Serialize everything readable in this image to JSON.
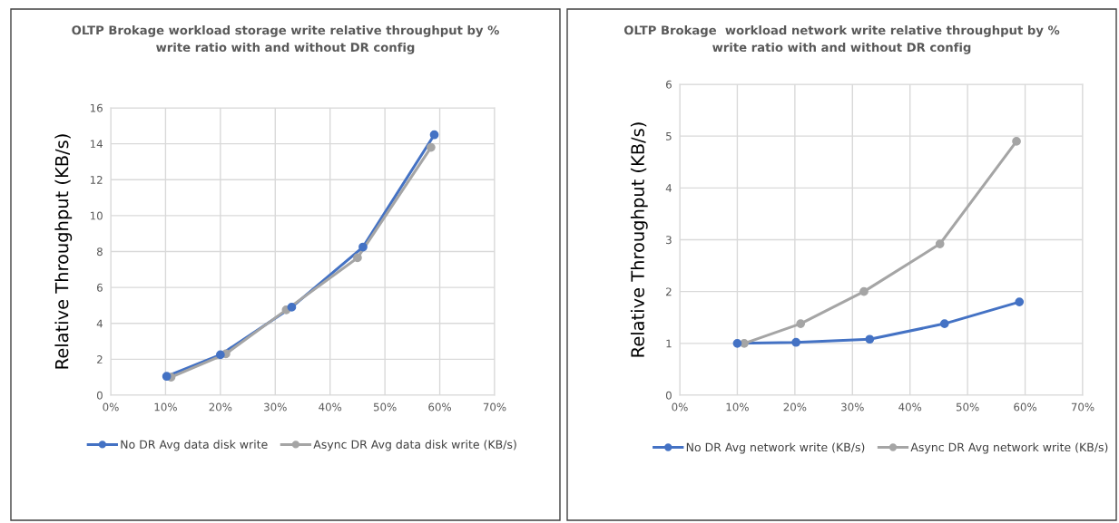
{
  "chart_data": [
    {
      "type": "line",
      "title": "OLTP Brokage workload storage write relative throughput by %\nwrite ratio with and without DR config",
      "ylabel": "Relative Throughput (KB/s)",
      "xlim": [
        0,
        70
      ],
      "xticks": [
        {
          "value": 0,
          "label": "0%"
        },
        {
          "value": 10,
          "label": "10%"
        },
        {
          "value": 20,
          "label": "20%"
        },
        {
          "value": 30,
          "label": "30%"
        },
        {
          "value": 40,
          "label": "40%"
        },
        {
          "value": 50,
          "label": "50%"
        },
        {
          "value": 60,
          "label": "60%"
        },
        {
          "value": 70,
          "label": "70%"
        }
      ],
      "ylim": [
        0,
        16
      ],
      "yticks": [
        0,
        2,
        4,
        6,
        8,
        10,
        12,
        14,
        16
      ],
      "grid": true,
      "legend": "bottom",
      "marker": "circle",
      "line_style": "solid",
      "series": [
        {
          "name": "No DR Avg data disk write",
          "color": "#4472c4",
          "x": [
            10.2,
            20.0,
            33.0,
            46.0,
            59.0
          ],
          "values": [
            1.05,
            2.25,
            4.9,
            8.25,
            14.5
          ]
        },
        {
          "name": "Async DR Avg data disk write (KB/s)",
          "color": "#a5a5a5",
          "x": [
            11.0,
            21.0,
            32.0,
            45.0,
            58.4
          ],
          "values": [
            1.0,
            2.3,
            4.75,
            7.65,
            13.8
          ]
        }
      ]
    },
    {
      "type": "line",
      "title": "OLTP Brokage  workload network write relative throughput by %\nwrite ratio with and without DR config",
      "ylabel": "Relative Throughput (KB/s)",
      "xlim": [
        0,
        70
      ],
      "xticks": [
        {
          "value": 0,
          "label": "0%"
        },
        {
          "value": 10,
          "label": "10%"
        },
        {
          "value": 20,
          "label": "20%"
        },
        {
          "value": 30,
          "label": "30%"
        },
        {
          "value": 40,
          "label": "40%"
        },
        {
          "value": 50,
          "label": "50%"
        },
        {
          "value": 60,
          "label": "60%"
        },
        {
          "value": 70,
          "label": "70%"
        }
      ],
      "ylim": [
        0,
        6
      ],
      "yticks": [
        0,
        1,
        2,
        3,
        4,
        5,
        6
      ],
      "grid": true,
      "legend": "bottom",
      "marker": "circle",
      "line_style": "solid",
      "series": [
        {
          "name": "No DR Avg network write (KB/s)",
          "color": "#4472c4",
          "x": [
            10.0,
            20.2,
            33.0,
            46.0,
            59.0
          ],
          "values": [
            1.0,
            1.02,
            1.08,
            1.38,
            1.8
          ]
        },
        {
          "name": "Async DR Avg network write (KB/s)",
          "color": "#a5a5a5",
          "x": [
            11.2,
            21.0,
            32.0,
            45.2,
            58.5
          ],
          "values": [
            1.0,
            1.38,
            2.0,
            2.92,
            4.9
          ]
        }
      ]
    }
  ]
}
